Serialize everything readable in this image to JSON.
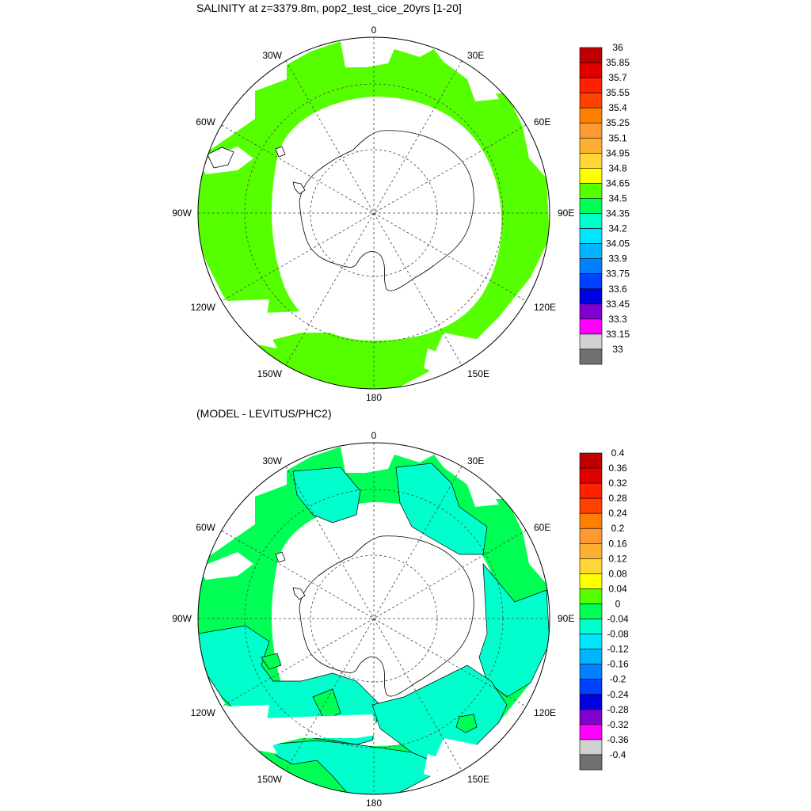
{
  "top_panel": {
    "title": "SALINITY at z=3379.8m, pop2_test_cice_20yrs [1-20]",
    "colorbar": {
      "labels": [
        "36",
        "35.85",
        "35.7",
        "35.55",
        "35.4",
        "35.25",
        "35.1",
        "34.95",
        "34.8",
        "34.65",
        "34.5",
        "34.35",
        "34.2",
        "34.05",
        "33.9",
        "33.75",
        "33.6",
        "33.45",
        "33.3",
        "33.15",
        "33"
      ],
      "colors": [
        "#c00000",
        "#e00000",
        "#ff2000",
        "#ff4000",
        "#ff8000",
        "#ff9933",
        "#ffb033",
        "#ffd633",
        "#ffff00",
        "#55ff00",
        "#00ff55",
        "#00ffcc",
        "#00e5ff",
        "#00b4ff",
        "#0080ff",
        "#0040ff",
        "#0000e0",
        "#8000d0",
        "#ff00ff",
        "#d0d0d0",
        "#707070"
      ]
    }
  },
  "bottom_panel": {
    "title": "(MODEL - LEVITUS/PHC2)",
    "colorbar": {
      "labels": [
        "0.4",
        "0.36",
        "0.32",
        "0.28",
        "0.24",
        "0.2",
        "0.16",
        "0.12",
        "0.08",
        "0.04",
        "0",
        "-0.04",
        "-0.08",
        "-0.12",
        "-0.16",
        "-0.2",
        "-0.24",
        "-0.28",
        "-0.32",
        "-0.36",
        "-0.4"
      ],
      "colors": [
        "#c00000",
        "#e00000",
        "#ff2000",
        "#ff4000",
        "#ff8000",
        "#ff9933",
        "#ffb033",
        "#ffd633",
        "#ffff00",
        "#55ff00",
        "#00ff55",
        "#00ffcc",
        "#00e5ff",
        "#00b4ff",
        "#0080ff",
        "#0040ff",
        "#0000e0",
        "#8000d0",
        "#ff00ff",
        "#d0d0d0",
        "#707070"
      ]
    }
  },
  "map_labels": {
    "lon_0": "0",
    "lon_30e": "30E",
    "lon_60e": "60E",
    "lon_90e": "90E",
    "lon_120e": "120E",
    "lon_150e": "150E",
    "lon_180": "180",
    "lon_150w": "150W",
    "lon_120w": "120W",
    "lon_90w": "90W",
    "lon_60w": "60W",
    "lon_30w": "30W"
  },
  "field_colors": {
    "top": "#55ff00",
    "bottom_pos": "#00ff55",
    "bottom_neg": "#00ffcc"
  }
}
